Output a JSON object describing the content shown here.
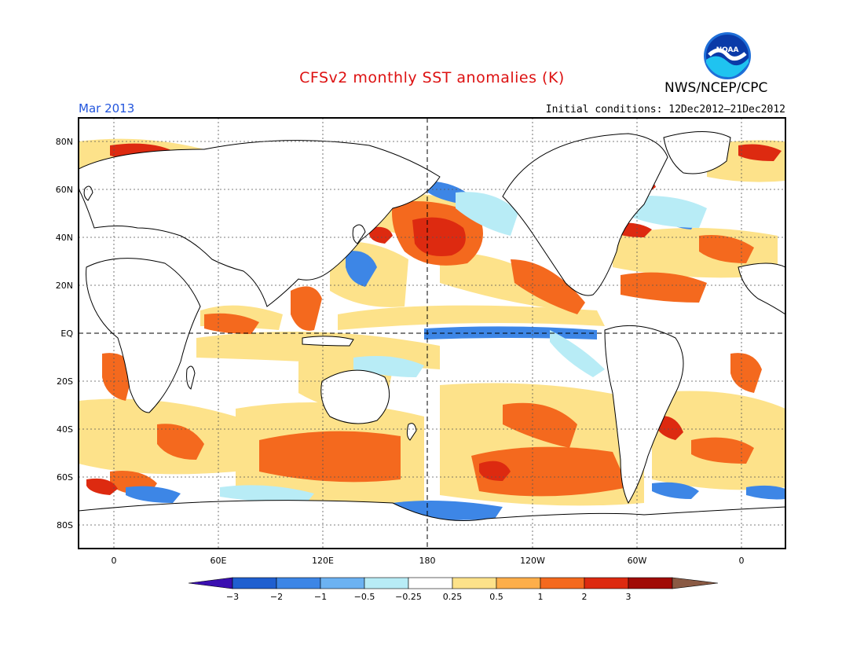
{
  "header": {
    "title": "CFSv2 monthly SST anomalies (K)",
    "agency": "NWS/NCEP/CPC",
    "month": "Mar 2013",
    "initial_conditions": "Initial conditions: 12Dec2012–21Dec2012",
    "logo_text": "NOAA"
  },
  "axes": {
    "lat_labels": [
      "80N",
      "60N",
      "40N",
      "20N",
      "EQ",
      "20S",
      "40S",
      "60S",
      "80S"
    ],
    "lon_labels": [
      "0",
      "60E",
      "120E",
      "180",
      "120W",
      "60W",
      "0"
    ]
  },
  "colorbar": {
    "labels": [
      "−3",
      "−2",
      "−1",
      "−0.5",
      "−0.25",
      "0.25",
      "0.5",
      "1",
      "2",
      "3"
    ],
    "colors": [
      "#3a0fb0",
      "#1f5fd0",
      "#3d86e6",
      "#6cb2f2",
      "#b8ecf6",
      "#ffffff",
      "#fde28a",
      "#fdae4a",
      "#f4691e",
      "#dd2a10",
      "#a10b06",
      "#8a5a44"
    ]
  },
  "colors": {
    "anomaly_strong_positive": "#dd2a10",
    "anomaly_positive": "#f4691e",
    "anomaly_weak_positive": "#fde28a",
    "anomaly_negative": "#3d86e6",
    "anomaly_weak_negative": "#b8ecf6"
  }
}
